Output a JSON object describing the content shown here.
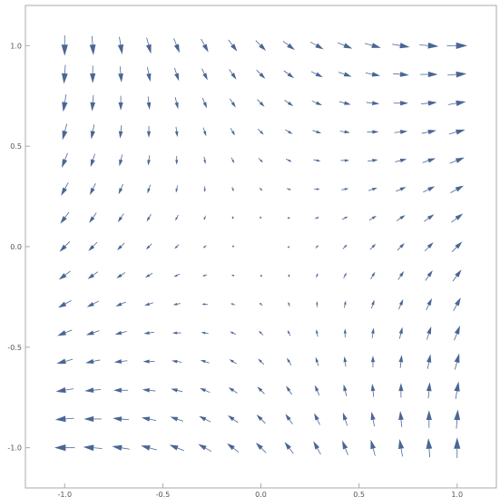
{
  "chart_data": {
    "type": "vector-field",
    "title": "",
    "xlabel": "",
    "ylabel": "",
    "xlim": [
      -1.2,
      1.2
    ],
    "ylim": [
      -1.2,
      1.2
    ],
    "grid": false,
    "arrow_color": "#4a6695",
    "frame_color": "#aaaaaa",
    "field": {
      "u": "x + y",
      "v": "x - y"
    },
    "sample_x": [
      -1.0,
      -0.857,
      -0.714,
      -0.571,
      -0.429,
      -0.286,
      -0.143,
      0.0,
      0.143,
      0.286,
      0.429,
      0.571,
      0.714,
      0.857,
      1.0
    ],
    "sample_y": [
      -1.0,
      -0.857,
      -0.714,
      -0.571,
      -0.429,
      -0.286,
      -0.143,
      0.0,
      0.143,
      0.286,
      0.429,
      0.571,
      0.714,
      0.857,
      1.0
    ],
    "x_ticks": [
      {
        "value": -1.0,
        "label": "-1.0"
      },
      {
        "value": -0.5,
        "label": "-0.5"
      },
      {
        "value": 0.0,
        "label": "0.0"
      },
      {
        "value": 0.5,
        "label": "0.5"
      },
      {
        "value": 1.0,
        "label": "1.0"
      }
    ],
    "y_ticks": [
      {
        "value": 1.0,
        "label": "1.0"
      },
      {
        "value": 0.5,
        "label": "0.5"
      },
      {
        "value": 0.0,
        "label": "0.0"
      },
      {
        "value": -0.5,
        "label": "-0.5"
      },
      {
        "value": -1.0,
        "label": "-1.0"
      }
    ]
  }
}
